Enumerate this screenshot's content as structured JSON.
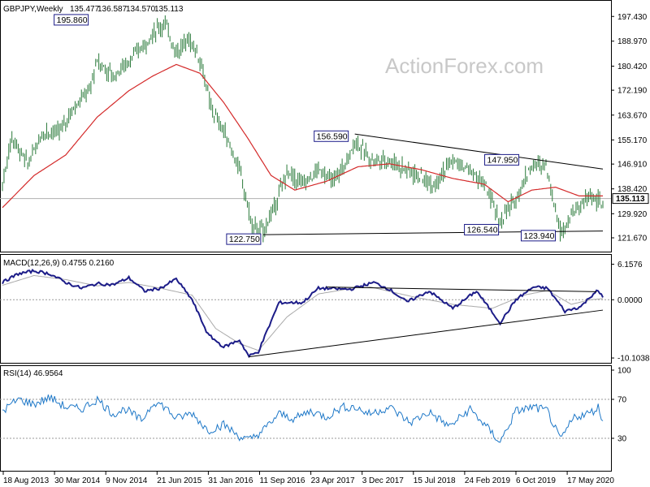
{
  "watermark": "ActionForex.com",
  "colors": {
    "bar": "#2a7a3a",
    "ma": "#d42a2a",
    "macd": "#1c1c88",
    "signal": "#aaaaaa",
    "rsi": "#1e78c8",
    "box": "#1c1c88"
  },
  "chart_data": [
    {
      "type": "ohlc",
      "title": "GBPJPY,Weekly",
      "ohlc_header": [
        "135.477",
        "136.587",
        "134.570",
        "135.113"
      ],
      "ylim": [
        116.95,
        202.5
      ],
      "y_ticks": [
        "197.430",
        "188.970",
        "180.420",
        "172.190",
        "163.670",
        "155.170",
        "146.910",
        "138.420",
        "129.920",
        "121.670"
      ],
      "last_price_label": "135.113",
      "last_price": 135.113,
      "x_ticks": [
        "18 Aug 2013",
        "30 Mar 2014",
        "9 Nov 2014",
        "21 Jun 2015",
        "31 Jan 2016",
        "11 Sep 2016",
        "23 Apr 2017",
        "3 Dec 2017",
        "15 Jul 2018",
        "24 Feb 2019",
        "6 Oct 2019",
        "17 May 2020"
      ],
      "annotations": [
        {
          "text": "195.860",
          "value": 195.86,
          "week": 43
        },
        {
          "text": "122.750",
          "value": 122.75,
          "week": 165
        },
        {
          "text": "156.590",
          "value": 156.59,
          "week": 223
        },
        {
          "text": "147.950",
          "value": 147.95,
          "week": 334
        },
        {
          "text": "126.540",
          "value": 126.54,
          "week": 315
        },
        {
          "text": "123.940",
          "value": 123.94,
          "week": 353
        }
      ],
      "price_anchors": [
        [
          0,
          140
        ],
        [
          6,
          156
        ],
        [
          16,
          147
        ],
        [
          26,
          158
        ],
        [
          36,
          158
        ],
        [
          46,
          167
        ],
        [
          55,
          172
        ],
        [
          60,
          182
        ],
        [
          70,
          177
        ],
        [
          80,
          182
        ],
        [
          88,
          187
        ],
        [
          98,
          193
        ],
        [
          103,
          195
        ],
        [
          110,
          185
        ],
        [
          118,
          190
        ],
        [
          125,
          183
        ],
        [
          132,
          166
        ],
        [
          142,
          156
        ],
        [
          150,
          145
        ],
        [
          158,
          126
        ],
        [
          165,
          124
        ],
        [
          172,
          132
        ],
        [
          180,
          144
        ],
        [
          190,
          140
        ],
        [
          200,
          145
        ],
        [
          210,
          141
        ],
        [
          220,
          150
        ],
        [
          223,
          155
        ],
        [
          232,
          149
        ],
        [
          245,
          148
        ],
        [
          260,
          144
        ],
        [
          272,
          140
        ],
        [
          285,
          148
        ],
        [
          296,
          145
        ],
        [
          305,
          140
        ],
        [
          315,
          127
        ],
        [
          325,
          135
        ],
        [
          334,
          146
        ],
        [
          344,
          147
        ],
        [
          353,
          124
        ],
        [
          362,
          131
        ],
        [
          372,
          136
        ],
        [
          380,
          133
        ]
      ],
      "ma_anchors": [
        [
          0,
          132
        ],
        [
          20,
          143
        ],
        [
          40,
          150
        ],
        [
          60,
          163
        ],
        [
          80,
          172
        ],
        [
          95,
          177
        ],
        [
          110,
          181
        ],
        [
          125,
          178
        ],
        [
          140,
          168
        ],
        [
          155,
          156
        ],
        [
          170,
          143
        ],
        [
          185,
          138
        ],
        [
          205,
          141
        ],
        [
          225,
          146
        ],
        [
          245,
          147
        ],
        [
          265,
          145
        ],
        [
          285,
          142
        ],
        [
          305,
          140
        ],
        [
          320,
          134
        ],
        [
          335,
          138
        ],
        [
          350,
          139
        ],
        [
          365,
          136
        ],
        [
          380,
          136
        ]
      ]
    },
    {
      "type": "line",
      "title": "MACD(12,26,9) 0.4755 0.2160",
      "ylim": [
        -10.8,
        7.5
      ],
      "y_ticks": [
        "6.1576",
        "0.0000",
        "-10.1038"
      ],
      "macd_anchors": [
        [
          0,
          3
        ],
        [
          10,
          4.5
        ],
        [
          20,
          5
        ],
        [
          30,
          4.5
        ],
        [
          40,
          3
        ],
        [
          50,
          2
        ],
        [
          60,
          2.8
        ],
        [
          70,
          2.6
        ],
        [
          80,
          3.8
        ],
        [
          90,
          1.5
        ],
        [
          100,
          2
        ],
        [
          110,
          3.6
        ],
        [
          120,
          0
        ],
        [
          130,
          -6
        ],
        [
          140,
          -8.2
        ],
        [
          150,
          -7
        ],
        [
          156,
          -9.8
        ],
        [
          162,
          -9
        ],
        [
          175,
          -0.5
        ],
        [
          190,
          -0.5
        ],
        [
          200,
          2
        ],
        [
          220,
          1.8
        ],
        [
          235,
          3
        ],
        [
          245,
          1.8
        ],
        [
          256,
          -0.4
        ],
        [
          270,
          1.5
        ],
        [
          285,
          -1.5
        ],
        [
          300,
          1.5
        ],
        [
          315,
          -4
        ],
        [
          325,
          0
        ],
        [
          336,
          2.2
        ],
        [
          345,
          2
        ],
        [
          356,
          -2
        ],
        [
          366,
          -1.2
        ],
        [
          376,
          1.6
        ],
        [
          380,
          0.5
        ]
      ],
      "signal_anchors": [
        [
          0,
          2.5
        ],
        [
          20,
          4.2
        ],
        [
          40,
          3.5
        ],
        [
          60,
          2.4
        ],
        [
          80,
          3
        ],
        [
          100,
          2
        ],
        [
          120,
          0.8
        ],
        [
          135,
          -5
        ],
        [
          150,
          -7.6
        ],
        [
          162,
          -8.8
        ],
        [
          180,
          -3
        ],
        [
          200,
          1
        ],
        [
          230,
          2.4
        ],
        [
          260,
          0.5
        ],
        [
          285,
          -0.8
        ],
        [
          310,
          -1.5
        ],
        [
          330,
          0.8
        ],
        [
          345,
          1.6
        ],
        [
          360,
          -0.8
        ],
        [
          372,
          0
        ],
        [
          380,
          0.2
        ]
      ]
    },
    {
      "type": "line",
      "title": "RSI(14) 46.9564",
      "ylim": [
        0,
        100
      ],
      "y_ticks": [
        "100",
        "70",
        "30"
      ],
      "rsi_anchors": [
        [
          0,
          58
        ],
        [
          10,
          70
        ],
        [
          20,
          65
        ],
        [
          30,
          72
        ],
        [
          40,
          62
        ],
        [
          50,
          60
        ],
        [
          60,
          70
        ],
        [
          70,
          55
        ],
        [
          78,
          60
        ],
        [
          88,
          48
        ],
        [
          96,
          68
        ],
        [
          103,
          62
        ],
        [
          110,
          50
        ],
        [
          120,
          56
        ],
        [
          130,
          38
        ],
        [
          140,
          44
        ],
        [
          150,
          32
        ],
        [
          156,
          28
        ],
        [
          165,
          38
        ],
        [
          175,
          55
        ],
        [
          185,
          50
        ],
        [
          195,
          58
        ],
        [
          205,
          52
        ],
        [
          215,
          62
        ],
        [
          223,
          62
        ],
        [
          232,
          55
        ],
        [
          245,
          62
        ],
        [
          258,
          46
        ],
        [
          270,
          57
        ],
        [
          283,
          42
        ],
        [
          296,
          60
        ],
        [
          305,
          44
        ],
        [
          315,
          26
        ],
        [
          325,
          58
        ],
        [
          336,
          62
        ],
        [
          345,
          58
        ],
        [
          353,
          28
        ],
        [
          362,
          52
        ],
        [
          372,
          56
        ],
        [
          377,
          62
        ],
        [
          380,
          47
        ]
      ]
    }
  ]
}
